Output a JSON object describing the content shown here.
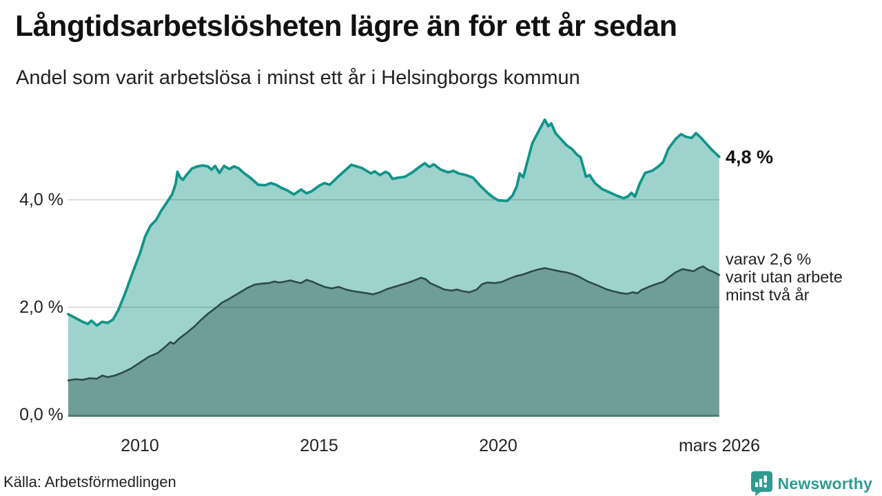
{
  "chart_data": {
    "type": "area",
    "title": "Långtidsarbetslösheten lägre än för ett år sedan",
    "subtitle": "Andel som varit arbetslösa i minst ett år i Helsingborgs kommun",
    "unit": "%",
    "grid_color": "rgba(0,0,0,0.13)",
    "baseline_color": "#4e7b76",
    "x_axis": {
      "range": [
        2008.0,
        2026.17
      ],
      "ticks": [
        {
          "label": "2010",
          "year": 2010
        },
        {
          "label": "2015",
          "year": 2015
        },
        {
          "label": "2020",
          "year": 2020
        },
        {
          "label": "mars 2026",
          "year": 2026.17
        }
      ]
    },
    "y_axis": {
      "range": [
        0,
        5.65
      ],
      "ticks": [
        {
          "label": "0,0 %",
          "value": 0
        },
        {
          "label": "2,0 %",
          "value": 2
        },
        {
          "label": "4,0 %",
          "value": 4
        }
      ]
    },
    "series": [
      {
        "name": "arbetslosa-minst-ett-ar",
        "end_value": "4,8 %",
        "color": "#12948a",
        "fill": "#9ed3cd",
        "points": [
          [
            2008.0,
            1.87
          ],
          [
            2008.2,
            1.8
          ],
          [
            2008.4,
            1.73
          ],
          [
            2008.55,
            1.69
          ],
          [
            2008.65,
            1.75
          ],
          [
            2008.8,
            1.66
          ],
          [
            2008.95,
            1.73
          ],
          [
            2009.1,
            1.71
          ],
          [
            2009.25,
            1.77
          ],
          [
            2009.4,
            1.95
          ],
          [
            2009.6,
            2.28
          ],
          [
            2009.8,
            2.65
          ],
          [
            2010.0,
            3.0
          ],
          [
            2010.15,
            3.32
          ],
          [
            2010.3,
            3.52
          ],
          [
            2010.45,
            3.62
          ],
          [
            2010.6,
            3.8
          ],
          [
            2010.75,
            3.95
          ],
          [
            2010.9,
            4.1
          ],
          [
            2011.0,
            4.3
          ],
          [
            2011.05,
            4.52
          ],
          [
            2011.12,
            4.42
          ],
          [
            2011.2,
            4.37
          ],
          [
            2011.3,
            4.46
          ],
          [
            2011.45,
            4.58
          ],
          [
            2011.6,
            4.62
          ],
          [
            2011.75,
            4.64
          ],
          [
            2011.9,
            4.62
          ],
          [
            2012.0,
            4.56
          ],
          [
            2012.1,
            4.63
          ],
          [
            2012.22,
            4.5
          ],
          [
            2012.35,
            4.63
          ],
          [
            2012.5,
            4.57
          ],
          [
            2012.62,
            4.62
          ],
          [
            2012.75,
            4.59
          ],
          [
            2012.9,
            4.5
          ],
          [
            2013.1,
            4.4
          ],
          [
            2013.3,
            4.28
          ],
          [
            2013.5,
            4.27
          ],
          [
            2013.65,
            4.31
          ],
          [
            2013.8,
            4.28
          ],
          [
            2013.95,
            4.22
          ],
          [
            2014.1,
            4.18
          ],
          [
            2014.3,
            4.1
          ],
          [
            2014.5,
            4.19
          ],
          [
            2014.65,
            4.12
          ],
          [
            2014.8,
            4.16
          ],
          [
            2015.0,
            4.26
          ],
          [
            2015.15,
            4.31
          ],
          [
            2015.3,
            4.28
          ],
          [
            2015.5,
            4.41
          ],
          [
            2015.7,
            4.53
          ],
          [
            2015.9,
            4.65
          ],
          [
            2016.05,
            4.62
          ],
          [
            2016.2,
            4.59
          ],
          [
            2016.3,
            4.55
          ],
          [
            2016.45,
            4.49
          ],
          [
            2016.55,
            4.53
          ],
          [
            2016.7,
            4.46
          ],
          [
            2016.85,
            4.52
          ],
          [
            2016.95,
            4.49
          ],
          [
            2017.05,
            4.39
          ],
          [
            2017.2,
            4.41
          ],
          [
            2017.4,
            4.43
          ],
          [
            2017.6,
            4.51
          ],
          [
            2017.8,
            4.61
          ],
          [
            2017.95,
            4.68
          ],
          [
            2018.08,
            4.61
          ],
          [
            2018.2,
            4.66
          ],
          [
            2018.4,
            4.56
          ],
          [
            2018.6,
            4.51
          ],
          [
            2018.75,
            4.54
          ],
          [
            2018.9,
            4.49
          ],
          [
            2019.1,
            4.46
          ],
          [
            2019.3,
            4.41
          ],
          [
            2019.5,
            4.26
          ],
          [
            2019.7,
            4.13
          ],
          [
            2019.85,
            4.05
          ],
          [
            2020.0,
            3.99
          ],
          [
            2020.25,
            3.98
          ],
          [
            2020.4,
            4.08
          ],
          [
            2020.52,
            4.25
          ],
          [
            2020.6,
            4.49
          ],
          [
            2020.7,
            4.42
          ],
          [
            2020.82,
            4.72
          ],
          [
            2020.95,
            5.05
          ],
          [
            2021.1,
            5.24
          ],
          [
            2021.3,
            5.49
          ],
          [
            2021.4,
            5.37
          ],
          [
            2021.48,
            5.42
          ],
          [
            2021.6,
            5.24
          ],
          [
            2021.75,
            5.13
          ],
          [
            2021.9,
            5.02
          ],
          [
            2022.05,
            4.95
          ],
          [
            2022.2,
            4.84
          ],
          [
            2022.3,
            4.79
          ],
          [
            2022.45,
            4.43
          ],
          [
            2022.55,
            4.46
          ],
          [
            2022.7,
            4.31
          ],
          [
            2022.9,
            4.2
          ],
          [
            2023.1,
            4.14
          ],
          [
            2023.3,
            4.08
          ],
          [
            2023.5,
            4.03
          ],
          [
            2023.62,
            4.06
          ],
          [
            2023.72,
            4.13
          ],
          [
            2023.82,
            4.06
          ],
          [
            2023.95,
            4.3
          ],
          [
            2024.1,
            4.5
          ],
          [
            2024.3,
            4.54
          ],
          [
            2024.45,
            4.61
          ],
          [
            2024.6,
            4.7
          ],
          [
            2024.75,
            4.95
          ],
          [
            2024.95,
            5.13
          ],
          [
            2025.1,
            5.22
          ],
          [
            2025.25,
            5.17
          ],
          [
            2025.4,
            5.15
          ],
          [
            2025.52,
            5.24
          ],
          [
            2025.65,
            5.16
          ],
          [
            2025.8,
            5.05
          ],
          [
            2025.95,
            4.94
          ],
          [
            2026.17,
            4.8
          ]
        ]
      },
      {
        "name": "arbetslosa-minst-tva-ar",
        "end_value": "2,6 %",
        "color": "#2d4a47",
        "fill": "#6f9d98",
        "points": [
          [
            2008.0,
            0.64
          ],
          [
            2008.2,
            0.66
          ],
          [
            2008.4,
            0.65
          ],
          [
            2008.6,
            0.68
          ],
          [
            2008.8,
            0.67
          ],
          [
            2008.95,
            0.73
          ],
          [
            2009.1,
            0.7
          ],
          [
            2009.3,
            0.73
          ],
          [
            2009.5,
            0.78
          ],
          [
            2009.75,
            0.86
          ],
          [
            2010.0,
            0.97
          ],
          [
            2010.25,
            1.08
          ],
          [
            2010.5,
            1.15
          ],
          [
            2010.7,
            1.26
          ],
          [
            2010.85,
            1.35
          ],
          [
            2010.95,
            1.32
          ],
          [
            2011.1,
            1.42
          ],
          [
            2011.3,
            1.52
          ],
          [
            2011.5,
            1.63
          ],
          [
            2011.7,
            1.76
          ],
          [
            2011.9,
            1.88
          ],
          [
            2012.1,
            1.98
          ],
          [
            2012.3,
            2.09
          ],
          [
            2012.45,
            2.14
          ],
          [
            2012.6,
            2.2
          ],
          [
            2012.8,
            2.28
          ],
          [
            2013.0,
            2.36
          ],
          [
            2013.2,
            2.42
          ],
          [
            2013.4,
            2.44
          ],
          [
            2013.6,
            2.45
          ],
          [
            2013.75,
            2.48
          ],
          [
            2013.9,
            2.46
          ],
          [
            2014.05,
            2.48
          ],
          [
            2014.2,
            2.5
          ],
          [
            2014.35,
            2.47
          ],
          [
            2014.5,
            2.45
          ],
          [
            2014.65,
            2.51
          ],
          [
            2014.8,
            2.48
          ],
          [
            2015.0,
            2.42
          ],
          [
            2015.15,
            2.38
          ],
          [
            2015.35,
            2.35
          ],
          [
            2015.55,
            2.38
          ],
          [
            2015.75,
            2.33
          ],
          [
            2015.95,
            2.3
          ],
          [
            2016.15,
            2.28
          ],
          [
            2016.35,
            2.26
          ],
          [
            2016.5,
            2.24
          ],
          [
            2016.7,
            2.28
          ],
          [
            2016.9,
            2.34
          ],
          [
            2017.1,
            2.38
          ],
          [
            2017.3,
            2.42
          ],
          [
            2017.5,
            2.46
          ],
          [
            2017.7,
            2.51
          ],
          [
            2017.85,
            2.55
          ],
          [
            2017.98,
            2.52
          ],
          [
            2018.1,
            2.45
          ],
          [
            2018.3,
            2.39
          ],
          [
            2018.5,
            2.33
          ],
          [
            2018.7,
            2.31
          ],
          [
            2018.85,
            2.33
          ],
          [
            2019.0,
            2.3
          ],
          [
            2019.2,
            2.28
          ],
          [
            2019.4,
            2.33
          ],
          [
            2019.55,
            2.43
          ],
          [
            2019.7,
            2.46
          ],
          [
            2019.9,
            2.45
          ],
          [
            2020.1,
            2.47
          ],
          [
            2020.3,
            2.53
          ],
          [
            2020.5,
            2.58
          ],
          [
            2020.7,
            2.61
          ],
          [
            2020.9,
            2.66
          ],
          [
            2021.1,
            2.7
          ],
          [
            2021.3,
            2.73
          ],
          [
            2021.5,
            2.7
          ],
          [
            2021.7,
            2.67
          ],
          [
            2021.9,
            2.65
          ],
          [
            2022.1,
            2.61
          ],
          [
            2022.25,
            2.57
          ],
          [
            2022.5,
            2.48
          ],
          [
            2022.8,
            2.4
          ],
          [
            2023.0,
            2.34
          ],
          [
            2023.2,
            2.3
          ],
          [
            2023.45,
            2.26
          ],
          [
            2023.6,
            2.25
          ],
          [
            2023.75,
            2.28
          ],
          [
            2023.88,
            2.26
          ],
          [
            2024.0,
            2.32
          ],
          [
            2024.2,
            2.38
          ],
          [
            2024.4,
            2.43
          ],
          [
            2024.6,
            2.47
          ],
          [
            2024.75,
            2.55
          ],
          [
            2024.95,
            2.65
          ],
          [
            2025.15,
            2.71
          ],
          [
            2025.3,
            2.69
          ],
          [
            2025.45,
            2.67
          ],
          [
            2025.6,
            2.73
          ],
          [
            2025.72,
            2.76
          ],
          [
            2025.85,
            2.7
          ],
          [
            2026.0,
            2.66
          ],
          [
            2026.17,
            2.6
          ]
        ]
      }
    ],
    "annotations": {
      "total_end": "4,8 %",
      "two_line1": "varav 2,6 %",
      "two_line2": "varit utan arbete",
      "two_line3": "minst två år"
    },
    "legend_position": "right-of-line-ends",
    "grid": "horizontal-only"
  },
  "source": "Källa: Arbetsförmedlingen",
  "logo": {
    "text": "Newsworthy",
    "color": "#2f9b90"
  }
}
